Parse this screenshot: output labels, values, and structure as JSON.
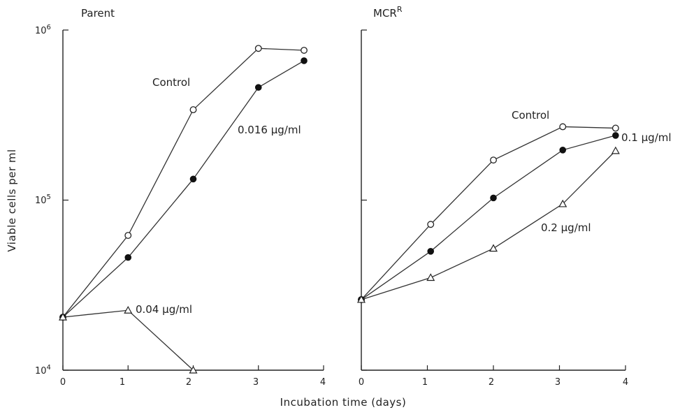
{
  "chart_data": [
    {
      "type": "line",
      "title": "Parent",
      "x_scale": "linear",
      "y_scale": "log",
      "xlim": [
        0,
        4
      ],
      "ylim": [
        10000,
        1000000
      ],
      "x_ticks": [
        "0",
        "1",
        "2",
        "3",
        "4"
      ],
      "y_ticks": [
        {
          "value": 1000000,
          "base": "10",
          "exp": "6"
        },
        {
          "value": 100000,
          "base": "10",
          "exp": "5"
        },
        {
          "value": 10000,
          "base": "10",
          "exp": "4"
        }
      ],
      "series": [
        {
          "name": "Control",
          "marker": "open-circle",
          "x": [
            0,
            1,
            2,
            3,
            3.7
          ],
          "y": [
            20500,
            62000,
            340000,
            780000,
            760000
          ]
        },
        {
          "name": "0.016 µg/ml",
          "marker": "filled-circle",
          "x": [
            0,
            1,
            2,
            3,
            3.7
          ],
          "y": [
            20500,
            46000,
            133000,
            460000,
            660000
          ]
        },
        {
          "name": "0.04 µg/ml",
          "marker": "open-triangle",
          "x": [
            0,
            1,
            2
          ],
          "y": [
            20500,
            22500,
            10000
          ]
        }
      ]
    },
    {
      "type": "line",
      "title": "MCR",
      "title_superscript": "R",
      "x_scale": "linear",
      "y_scale": "log",
      "xlim": [
        0,
        4
      ],
      "ylim": [
        10000,
        1000000
      ],
      "x_ticks": [
        "0",
        "1",
        "2",
        "3",
        "4"
      ],
      "series": [
        {
          "name": "Control",
          "marker": "open-circle",
          "x": [
            0,
            1.05,
            2,
            3.05,
            3.85
          ],
          "y": [
            26000,
            72000,
            172000,
            270000,
            265000
          ]
        },
        {
          "name": "0.1 µg/ml",
          "marker": "filled-circle",
          "x": [
            0,
            1.05,
            2,
            3.05,
            3.85
          ],
          "y": [
            26000,
            50000,
            103000,
            197000,
            240000
          ]
        },
        {
          "name": "0.2 µg/ml",
          "marker": "open-triangle",
          "x": [
            0,
            1.05,
            2,
            3.05,
            3.85
          ],
          "y": [
            26000,
            35000,
            52000,
            95000,
            195000
          ]
        }
      ]
    }
  ],
  "shared_axes": {
    "xlabel": "Incubation time (days)",
    "ylabel": "Viable cells per ml"
  },
  "annotations": {
    "parent_control": "Control",
    "parent_016": "0.016 µg/ml",
    "parent_004": "0.04 µg/ml",
    "mcr_control": "Control",
    "mcr_01": "0.1 µg/ml",
    "mcr_02": "0.2 µg/ml"
  }
}
